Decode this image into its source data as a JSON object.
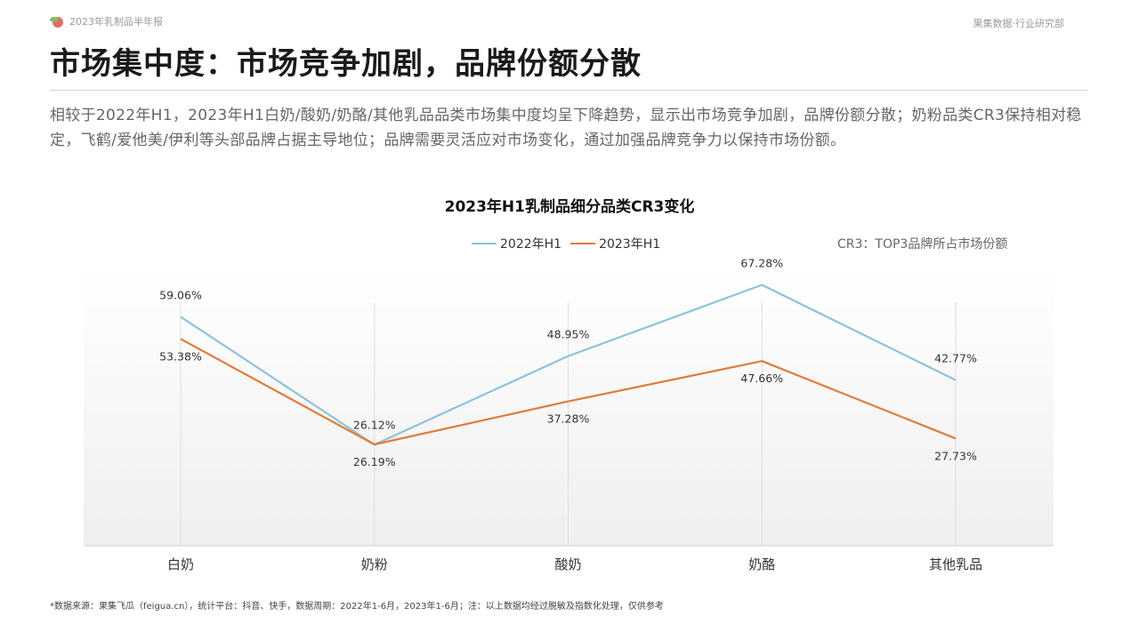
{
  "header": {
    "report_name": "2023年乳制品半年报",
    "org": "果集数据·行业研究部"
  },
  "page_title": "市场集中度：市场竞争加剧，品牌份额分散",
  "summary": "相较于2022年H1，2023年H1白奶/酸奶/奶酪/其他乳品品类市场集中度均呈下降趋势，显示出市场竞争加剧，品牌份额分散；奶粉品类CR3保持相对稳定，飞鹤/爱他美/伊利等头部品牌占据主导地位；品牌需要灵活应对市场变化，通过加强品牌竞争力以保持市场份额。",
  "cr3_note": "CR3：TOP3品牌所占市场份额",
  "footnote": "*数据来源：果集飞瓜（feigua.cn），统计平台：抖音、快手，数据周期：2022年1-6月，2023年1-6月；注：以上数据均经过脱敏及指数化处理，仅供参考",
  "colors": {
    "series_2022": "#8dc3dc",
    "series_2023": "#e07b39",
    "logo_red": "#e36b6b",
    "logo_green": "#7bbf6a"
  },
  "chart_data": {
    "type": "line",
    "title": "2023年H1乳制品细分品类CR3变化",
    "categories": [
      "白奶",
      "奶粉",
      "酸奶",
      "奶酪",
      "其他乳品"
    ],
    "series": [
      {
        "name": "2022年H1",
        "values": [
          59.06,
          26.12,
          48.95,
          67.28,
          42.77
        ],
        "labels": [
          "59.06%",
          "26.12%",
          "48.95%",
          "67.28%",
          "42.77%"
        ]
      },
      {
        "name": "2023年H1",
        "values": [
          53.38,
          26.19,
          37.28,
          47.66,
          27.73
        ],
        "labels": [
          "53.38%",
          "26.19%",
          "37.28%",
          "47.66%",
          "27.73%"
        ]
      }
    ],
    "xlabel": "",
    "ylabel": "",
    "legend": "top-center",
    "grid": false
  }
}
